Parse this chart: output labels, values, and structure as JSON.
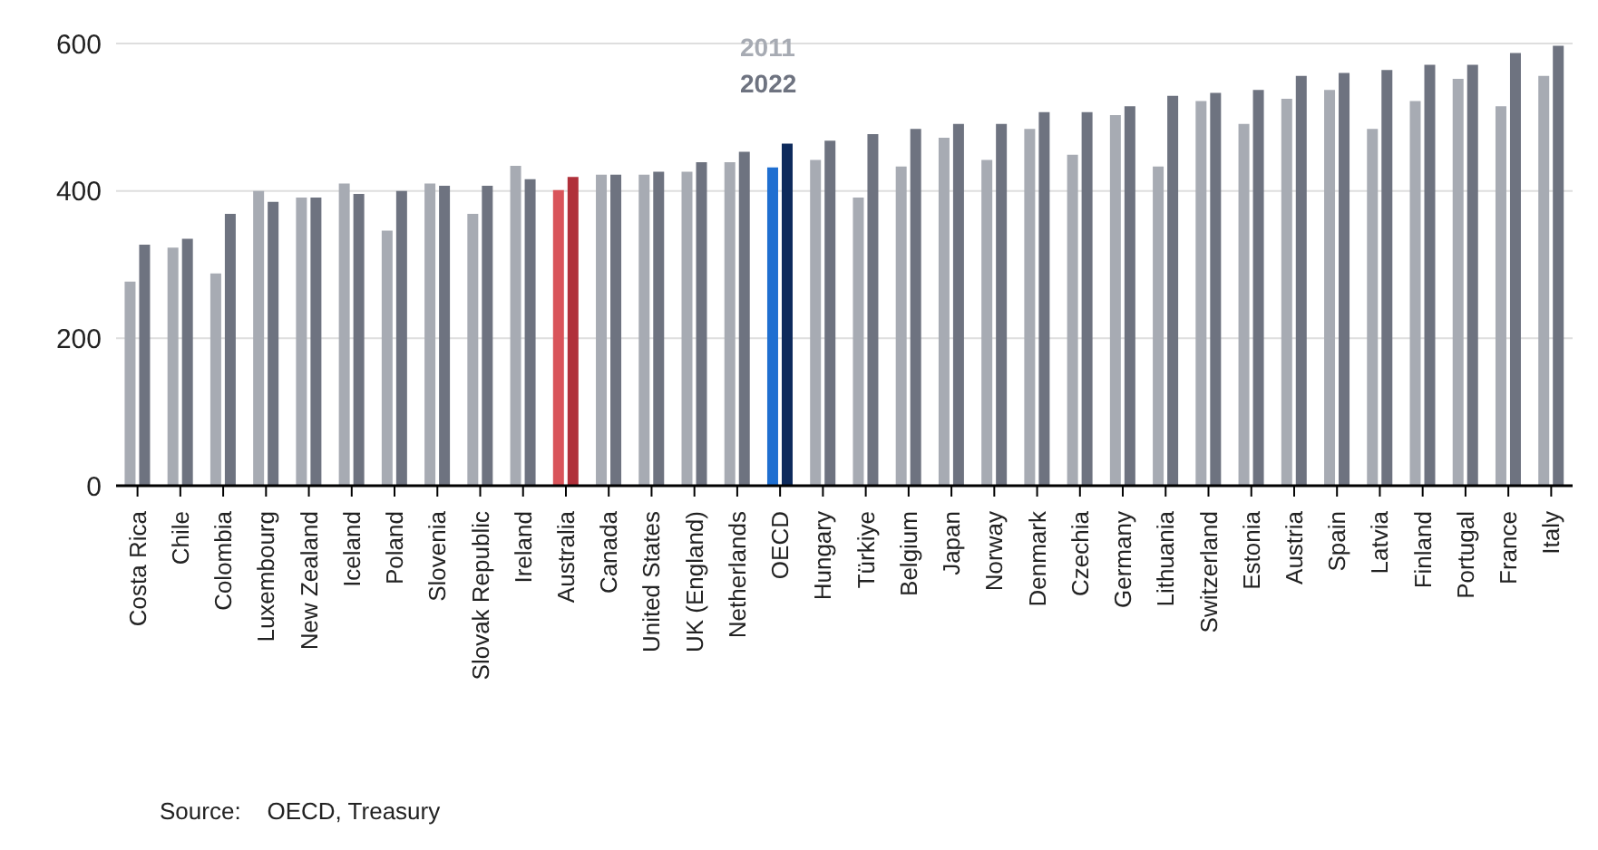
{
  "chart_data": {
    "type": "bar",
    "categories": [
      "Costa Rica",
      "Chile",
      "Colombia",
      "Luxembourg",
      "New Zealand",
      "Iceland",
      "Poland",
      "Slovenia",
      "Slovak Republic",
      "Ireland",
      "Australia",
      "Canada",
      "United States",
      "UK (England)",
      "Netherlands",
      "OECD",
      "Hungary",
      "Türkiye",
      "Belgium",
      "Japan",
      "Norway",
      "Denmark",
      "Czechia",
      "Germany",
      "Lithuania",
      "Switzerland",
      "Estonia",
      "Austria",
      "Spain",
      "Latvia",
      "Finland",
      "Portugal",
      "France",
      "Italy"
    ],
    "series": [
      {
        "name": "2011",
        "color": "#a7abb3",
        "colors": [
          "#a7abb3",
          "#a7abb3",
          "#a7abb3",
          "#a7abb3",
          "#a7abb3",
          "#a7abb3",
          "#a7abb3",
          "#a7abb3",
          "#a7abb3",
          "#a7abb3",
          "#d9545a",
          "#a7abb3",
          "#a7abb3",
          "#a7abb3",
          "#a7abb3",
          "#1f6fd1",
          "#a7abb3",
          "#a7abb3",
          "#a7abb3",
          "#a7abb3",
          "#a7abb3",
          "#a7abb3",
          "#a7abb3",
          "#a7abb3",
          "#a7abb3",
          "#a7abb3",
          "#a7abb3",
          "#a7abb3",
          "#a7abb3",
          "#a7abb3",
          "#a7abb3",
          "#a7abb3",
          "#a7abb3",
          "#a7abb3"
        ],
        "values": [
          277,
          323,
          288,
          400,
          391,
          410,
          346,
          410,
          369,
          434,
          401,
          422,
          422,
          426,
          439,
          432,
          442,
          391,
          433,
          472,
          442,
          484,
          449,
          503,
          433,
          522,
          491,
          525,
          537,
          484,
          522,
          552,
          515,
          556
        ]
      },
      {
        "name": "2022",
        "color": "#6e7380",
        "colors": [
          "#6e7380",
          "#6e7380",
          "#6e7380",
          "#6e7380",
          "#6e7380",
          "#6e7380",
          "#6e7380",
          "#6e7380",
          "#6e7380",
          "#6e7380",
          "#b0303a",
          "#6e7380",
          "#6e7380",
          "#6e7380",
          "#6e7380",
          "#0d2a5c",
          "#6e7380",
          "#6e7380",
          "#6e7380",
          "#6e7380",
          "#6e7380",
          "#6e7380",
          "#6e7380",
          "#6e7380",
          "#6e7380",
          "#6e7380",
          "#6e7380",
          "#6e7380",
          "#6e7380",
          "#6e7380",
          "#6e7380",
          "#6e7380",
          "#6e7380",
          "#6e7380"
        ],
        "values": [
          327,
          335,
          369,
          385,
          391,
          396,
          400,
          407,
          407,
          416,
          419,
          422,
          426,
          439,
          453,
          464,
          468,
          477,
          484,
          491,
          491,
          507,
          507,
          515,
          529,
          533,
          537,
          556,
          560,
          564,
          571,
          571,
          587,
          597
        ]
      }
    ],
    "ylim": [
      0,
      600
    ],
    "yticks": [
      0,
      200,
      400,
      600
    ],
    "grid": "y",
    "legend": "top",
    "annotations": [
      "Source:    OECD, Treasury"
    ]
  }
}
